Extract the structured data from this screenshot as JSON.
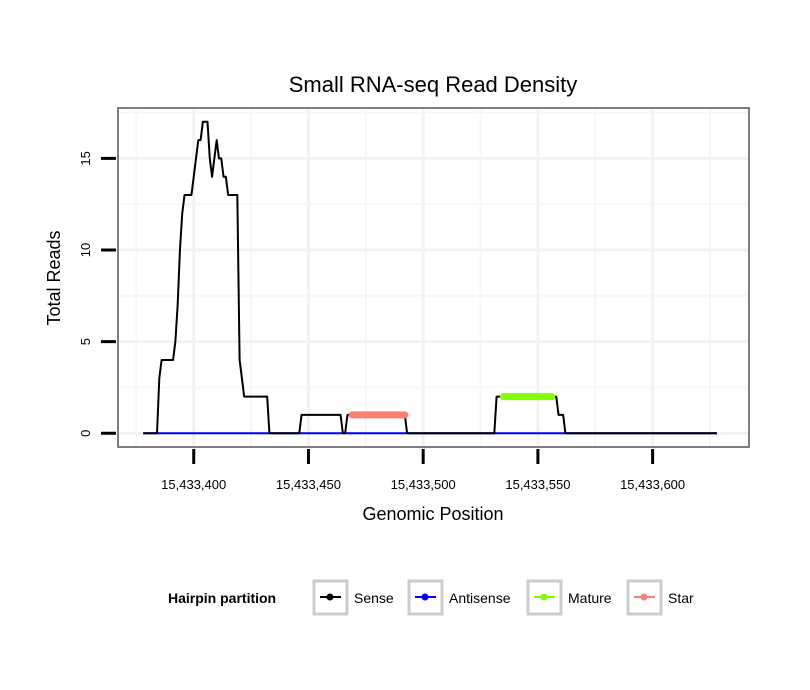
{
  "chart_data": {
    "type": "line",
    "title": "Small RNA-seq Read Density",
    "xlabel": "Genomic Position",
    "ylabel": "Total Reads",
    "xlim": [
      15433367,
      15433642
    ],
    "ylim": [
      -0.75,
      17.75
    ],
    "x_ticks": [
      15433400,
      15433450,
      15433500,
      15433550,
      15433600
    ],
    "x_tick_labels": [
      "15,433,400",
      "15,433,450",
      "15,433,500",
      "15,433,550",
      "15,433,600"
    ],
    "y_ticks": [
      0,
      5,
      10,
      15
    ],
    "y_tick_labels": [
      "0",
      "5",
      "10",
      "15"
    ],
    "grid": true,
    "legend": {
      "title": "Hairpin partition",
      "position": "bottom",
      "entries": [
        {
          "name": "Sense",
          "color": "#000000"
        },
        {
          "name": "Antisense",
          "color": "#0000ff"
        },
        {
          "name": "Mature",
          "color": "#7fff00"
        },
        {
          "name": "Star",
          "color": "#fa8072"
        }
      ]
    },
    "series": [
      {
        "name": "Sense",
        "color": "#000000",
        "points": [
          [
            15433378,
            0
          ],
          [
            15433384,
            0
          ],
          [
            15433385,
            3
          ],
          [
            15433386,
            4
          ],
          [
            15433391,
            4
          ],
          [
            15433392,
            5
          ],
          [
            15433393,
            7
          ],
          [
            15433394,
            10
          ],
          [
            15433395,
            12
          ],
          [
            15433396,
            13
          ],
          [
            15433399,
            13
          ],
          [
            15433400,
            14
          ],
          [
            15433401,
            15
          ],
          [
            15433402,
            16
          ],
          [
            15433403,
            16
          ],
          [
            15433404,
            17
          ],
          [
            15433406,
            17
          ],
          [
            15433407,
            15
          ],
          [
            15433408,
            14
          ],
          [
            15433409,
            15
          ],
          [
            15433410,
            16
          ],
          [
            15433411,
            15
          ],
          [
            15433412,
            15
          ],
          [
            15433413,
            14
          ],
          [
            15433414,
            14
          ],
          [
            15433415,
            13
          ],
          [
            15433419,
            13
          ],
          [
            15433420,
            4
          ],
          [
            15433421,
            3
          ],
          [
            15433422,
            2
          ],
          [
            15433432,
            2
          ],
          [
            15433433,
            0
          ],
          [
            15433446,
            0
          ],
          [
            15433447,
            1
          ],
          [
            15433464,
            1
          ],
          [
            15433465,
            0
          ],
          [
            15433466,
            0
          ],
          [
            15433467,
            1
          ],
          [
            15433492,
            1
          ],
          [
            15433493,
            0
          ],
          [
            15433531,
            0
          ],
          [
            15433532,
            2
          ],
          [
            15433541,
            2
          ],
          [
            15433552,
            2
          ],
          [
            15433558,
            2
          ],
          [
            15433559,
            1
          ],
          [
            15433561,
            1
          ],
          [
            15433562,
            0
          ],
          [
            15433628,
            0
          ]
        ]
      },
      {
        "name": "Antisense",
        "color": "#0000ff",
        "points": [
          [
            15433378,
            0
          ],
          [
            15433628,
            0
          ]
        ]
      },
      {
        "name": "Mature",
        "color": "#7fff00",
        "points": [
          [
            15433535,
            2
          ],
          [
            15433556,
            2
          ]
        ]
      },
      {
        "name": "Star",
        "color": "#fa8072",
        "points": [
          [
            15433469,
            1
          ],
          [
            15433492,
            1
          ]
        ]
      }
    ]
  }
}
